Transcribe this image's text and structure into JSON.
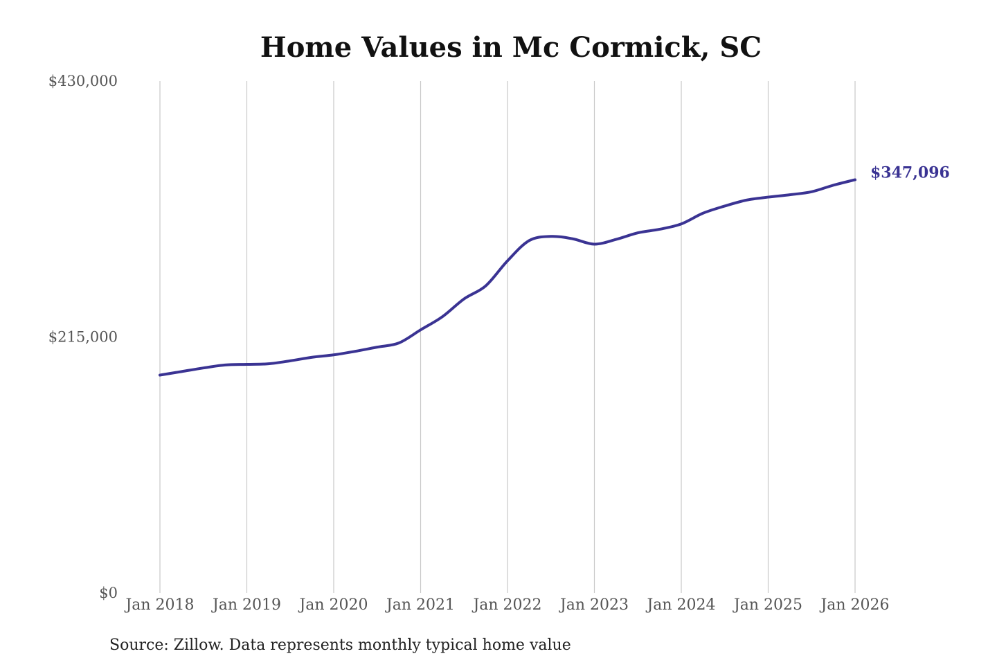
{
  "chart_data": {
    "type": "line",
    "title": "Home Values in Mc Cormick, SC",
    "xlabel": "",
    "ylabel": "",
    "ylim": [
      0,
      430000
    ],
    "yticks": [
      {
        "value": 0,
        "label": "$0"
      },
      {
        "value": 215000,
        "label": "$215,000"
      },
      {
        "value": 430000,
        "label": "$430,000"
      }
    ],
    "xticks": [
      {
        "value": 2018.0,
        "label": "Jan 2018"
      },
      {
        "value": 2019.0,
        "label": "Jan 2019"
      },
      {
        "value": 2020.0,
        "label": "Jan 2020"
      },
      {
        "value": 2021.0,
        "label": "Jan 2021"
      },
      {
        "value": 2022.0,
        "label": "Jan 2022"
      },
      {
        "value": 2023.0,
        "label": "Jan 2023"
      },
      {
        "value": 2024.0,
        "label": "Jan 2024"
      },
      {
        "value": 2025.0,
        "label": "Jan 2025"
      },
      {
        "value": 2026.0,
        "label": "Jan 2026"
      }
    ],
    "xlim": [
      2018.0,
      2026.08
    ],
    "grid": {
      "vertical": true,
      "horizontal": false
    },
    "series": [
      {
        "name": "",
        "color": "#3a3393",
        "points": [
          {
            "x": "2018-01",
            "y": 183000
          },
          {
            "x": "2018-04",
            "y": 186000
          },
          {
            "x": "2018-07",
            "y": 189000
          },
          {
            "x": "2018-10",
            "y": 191500
          },
          {
            "x": "2019-01",
            "y": 192000
          },
          {
            "x": "2019-04",
            "y": 192500
          },
          {
            "x": "2019-07",
            "y": 195000
          },
          {
            "x": "2019-10",
            "y": 198000
          },
          {
            "x": "2020-01",
            "y": 200000
          },
          {
            "x": "2020-04",
            "y": 203000
          },
          {
            "x": "2020-07",
            "y": 206500
          },
          {
            "x": "2020-10",
            "y": 210000
          },
          {
            "x": "2021-01",
            "y": 221000
          },
          {
            "x": "2021-04",
            "y": 232000
          },
          {
            "x": "2021-07",
            "y": 247000
          },
          {
            "x": "2021-10",
            "y": 258000
          },
          {
            "x": "2022-01",
            "y": 279000
          },
          {
            "x": "2022-04",
            "y": 296000
          },
          {
            "x": "2022-07",
            "y": 299500
          },
          {
            "x": "2022-10",
            "y": 297500
          },
          {
            "x": "2023-01",
            "y": 293000
          },
          {
            "x": "2023-04",
            "y": 297000
          },
          {
            "x": "2023-07",
            "y": 302500
          },
          {
            "x": "2023-10",
            "y": 305500
          },
          {
            "x": "2024-01",
            "y": 310000
          },
          {
            "x": "2024-04",
            "y": 319000
          },
          {
            "x": "2024-07",
            "y": 325000
          },
          {
            "x": "2024-10",
            "y": 330000
          },
          {
            "x": "2025-01",
            "y": 332500
          },
          {
            "x": "2025-04",
            "y": 334500
          },
          {
            "x": "2025-07",
            "y": 337000
          },
          {
            "x": "2025-10",
            "y": 342500
          },
          {
            "x": "2026-01",
            "y": 347096
          }
        ]
      }
    ],
    "end_label": "$347,096",
    "source": "Source: Zillow. Data represents monthly typical home value"
  },
  "colors": {
    "line": "#3a3393",
    "grid": "#c8c8c8",
    "background": "#ffffff"
  }
}
